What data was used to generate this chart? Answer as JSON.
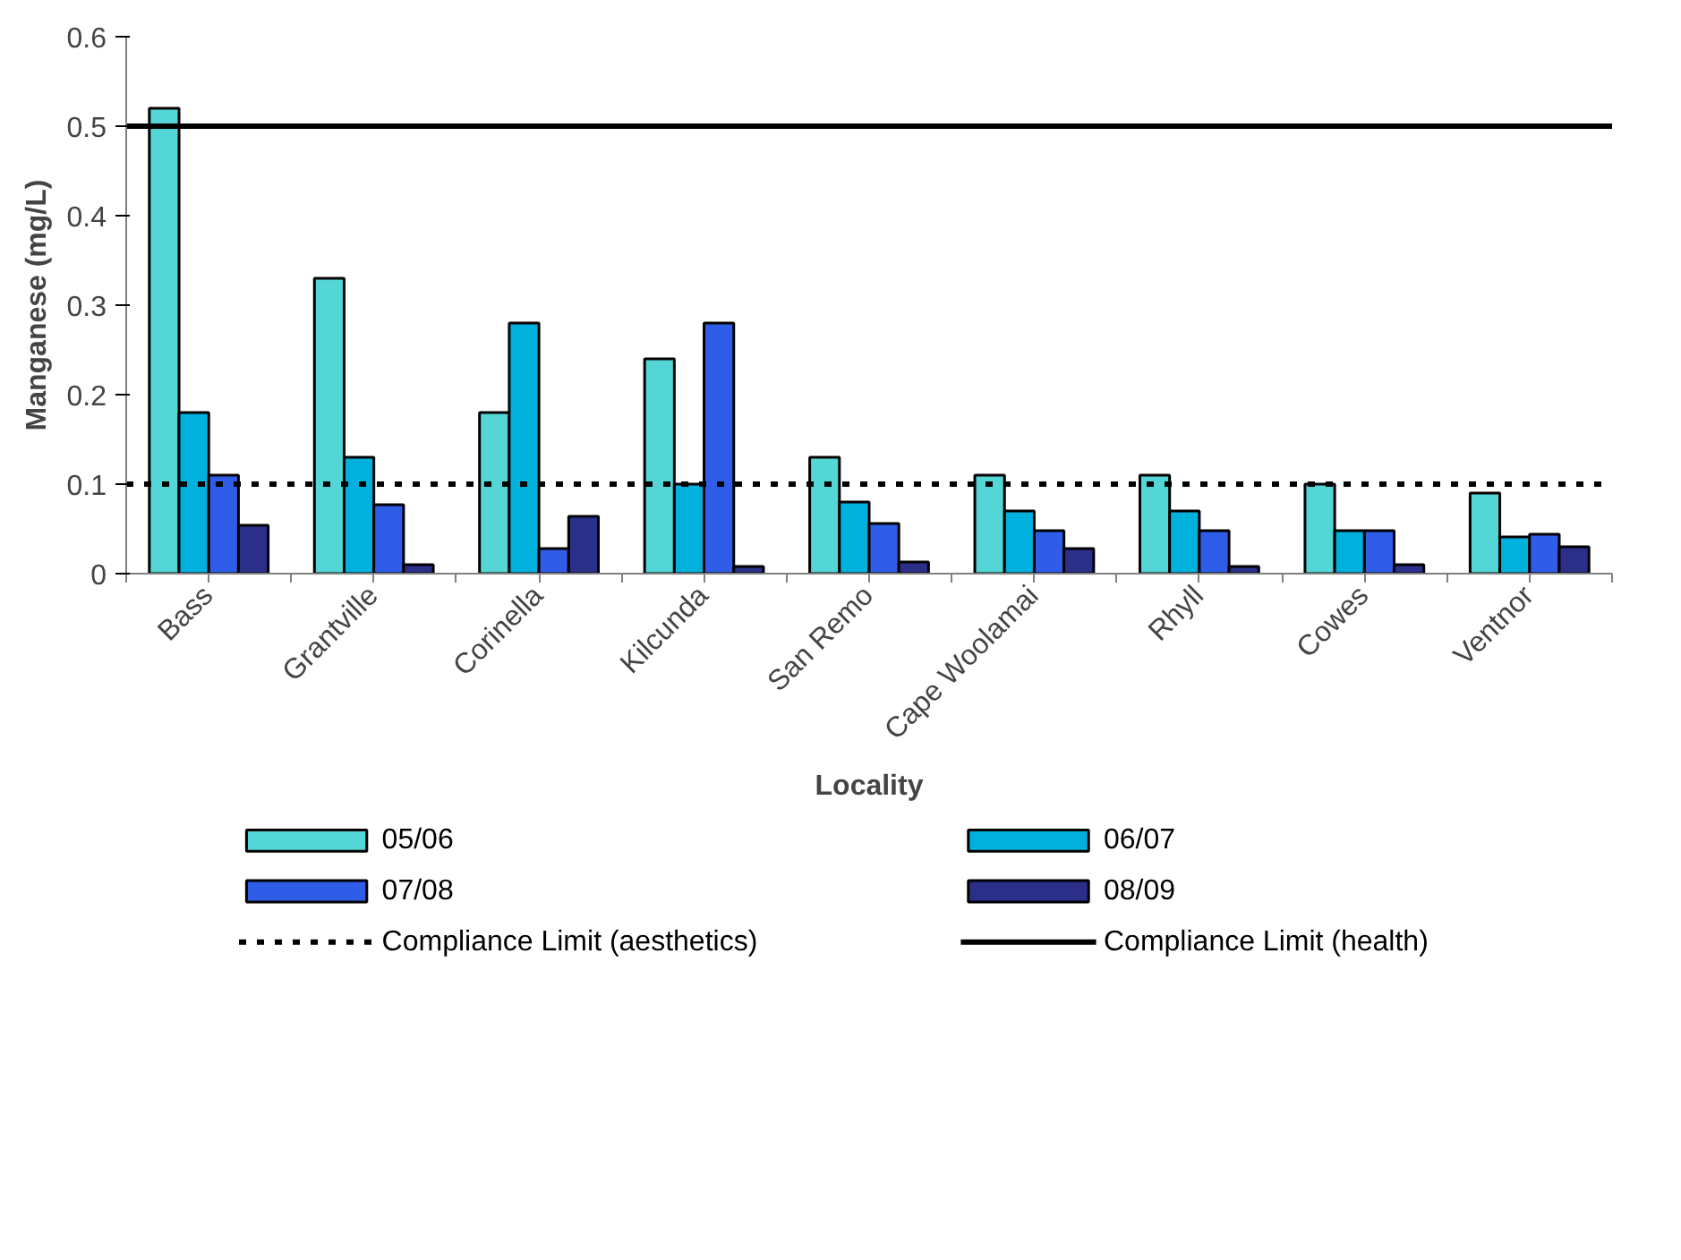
{
  "chart_data": {
    "type": "bar",
    "xlabel": "Locality",
    "ylabel": "Manganese (mg/L)",
    "categories": [
      "Bass",
      "Grantville",
      "Corinella",
      "Kilcunda",
      "San Remo",
      "Cape Woolamai",
      "Rhyll",
      "Cowes",
      "Ventnor"
    ],
    "series": [
      {
        "name": "05/06",
        "color": "#55d6d6",
        "values": [
          0.52,
          0.33,
          0.18,
          0.24,
          0.13,
          0.11,
          0.11,
          0.1,
          0.09
        ]
      },
      {
        "name": "06/07",
        "color": "#00b0dd",
        "values": [
          0.18,
          0.13,
          0.28,
          0.1,
          0.08,
          0.07,
          0.07,
          0.048,
          0.041
        ]
      },
      {
        "name": "07/08",
        "color": "#2f5de8",
        "values": [
          0.11,
          0.077,
          0.028,
          0.28,
          0.056,
          0.048,
          0.048,
          0.048,
          0.044
        ]
      },
      {
        "name": "08/09",
        "color": "#2b2f8a",
        "values": [
          0.054,
          0.01,
          0.064,
          0.008,
          0.013,
          0.028,
          0.008,
          0.01,
          0.03
        ]
      }
    ],
    "ref_lines": [
      {
        "axis": "y",
        "value": 0.1,
        "label": "Compliance Limit (aesthetics)",
        "color": "#000000",
        "line_style": "dotted"
      },
      {
        "axis": "y",
        "value": 0.5,
        "label": "Compliance Limit (health)",
        "color": "#000000",
        "line_style": "solid"
      }
    ],
    "ylim": [
      0,
      0.6
    ],
    "yticks": [
      0,
      0.1,
      0.2,
      0.3,
      0.4,
      0.5,
      0.6
    ],
    "grid": false,
    "legend": "bottom"
  }
}
